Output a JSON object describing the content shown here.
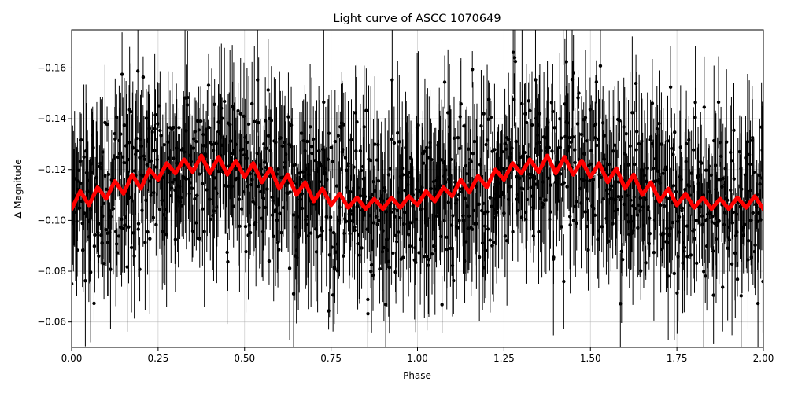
{
  "chart_data": {
    "type": "scatter",
    "title": "Light curve of ASCC 1070649",
    "xlabel": "Phase",
    "ylabel": "Δ Magnitude",
    "xlim": [
      0.0,
      2.0
    ],
    "ylim": [
      -0.05,
      -0.175
    ],
    "y_inverted": true,
    "grid": true,
    "x_ticks": [
      "0.00",
      "0.25",
      "0.50",
      "0.75",
      "1.00",
      "1.25",
      "1.50",
      "1.75",
      "2.00"
    ],
    "x_tick_values": [
      0.0,
      0.25,
      0.5,
      0.75,
      1.0,
      1.25,
      1.5,
      1.75,
      2.0
    ],
    "y_ticks": [
      "−0.06",
      "−0.08",
      "−0.10",
      "−0.12",
      "−0.14",
      "−0.16"
    ],
    "y_tick_values": [
      -0.06,
      -0.08,
      -0.1,
      -0.12,
      -0.14,
      -0.16
    ],
    "series": [
      {
        "kind": "points-with-errorbars",
        "color": "#000000",
        "x_range": [
          0.0,
          2.0
        ],
        "y_center": -0.115,
        "y_spread": 0.03,
        "point_count": 1200,
        "errorbar_halfwidth_typical": 0.015
      },
      {
        "kind": "model-fit",
        "color": "#ff0000",
        "x": [
          0.0,
          0.025,
          0.05,
          0.075,
          0.1,
          0.125,
          0.15,
          0.175,
          0.2,
          0.225,
          0.25,
          0.275,
          0.3,
          0.325,
          0.35,
          0.375,
          0.4,
          0.425,
          0.45,
          0.475,
          0.5,
          0.525,
          0.55,
          0.575,
          0.6,
          0.625,
          0.65,
          0.675,
          0.7,
          0.725,
          0.75,
          0.775,
          0.8,
          0.825,
          0.85,
          0.875,
          0.9,
          0.925,
          0.95,
          0.975,
          1.0,
          1.025,
          1.05,
          1.075,
          1.1,
          1.125,
          1.15,
          1.175,
          1.2,
          1.225,
          1.25,
          1.275,
          1.3,
          1.325,
          1.35,
          1.375,
          1.4,
          1.425,
          1.45,
          1.475,
          1.5,
          1.525,
          1.55,
          1.575,
          1.6,
          1.625,
          1.65,
          1.675,
          1.7,
          1.725,
          1.75,
          1.775,
          1.8,
          1.825,
          1.85,
          1.875,
          1.9,
          1.925,
          1.95,
          1.975,
          2.0
        ],
        "y": [
          -0.1045,
          -0.1115,
          -0.106,
          -0.113,
          -0.1085,
          -0.1155,
          -0.1105,
          -0.118,
          -0.1125,
          -0.12,
          -0.116,
          -0.1225,
          -0.1185,
          -0.124,
          -0.119,
          -0.1255,
          -0.1185,
          -0.125,
          -0.118,
          -0.1235,
          -0.117,
          -0.1225,
          -0.115,
          -0.1205,
          -0.1125,
          -0.118,
          -0.11,
          -0.115,
          -0.1075,
          -0.1125,
          -0.106,
          -0.1105,
          -0.105,
          -0.109,
          -0.1045,
          -0.1085,
          -0.1045,
          -0.109,
          -0.105,
          -0.1095,
          -0.106,
          -0.1115,
          -0.1075,
          -0.113,
          -0.1095,
          -0.116,
          -0.111,
          -0.1175,
          -0.113,
          -0.12,
          -0.116,
          -0.1225,
          -0.1185,
          -0.124,
          -0.119,
          -0.1255,
          -0.1185,
          -0.125,
          -0.118,
          -0.1235,
          -0.117,
          -0.1225,
          -0.115,
          -0.1205,
          -0.1125,
          -0.118,
          -0.11,
          -0.115,
          -0.1075,
          -0.1125,
          -0.106,
          -0.1105,
          -0.105,
          -0.109,
          -0.1045,
          -0.1085,
          -0.1045,
          -0.109,
          -0.105,
          -0.1095,
          -0.1045
        ]
      }
    ]
  }
}
